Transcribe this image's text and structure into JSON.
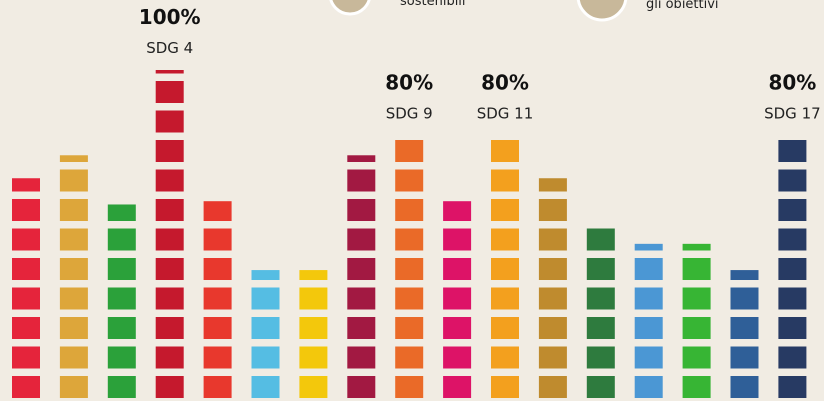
{
  "chart_data": {
    "type": "block-bar",
    "annotations": [
      "sostenibili",
      "gli obiettivi"
    ],
    "categories": [
      null,
      null,
      null,
      "SDG 4",
      null,
      null,
      null,
      null,
      "SDG 9",
      null,
      "SDG 11",
      null,
      null,
      null,
      null,
      null,
      "SDG 17"
    ],
    "values": [
      67,
      74,
      59,
      100,
      60,
      39,
      39,
      74,
      80,
      60,
      80,
      67,
      54,
      47,
      47,
      39,
      80
    ],
    "value_labels": [
      null,
      null,
      null,
      "100%",
      null,
      null,
      null,
      null,
      "80%",
      null,
      "80%",
      null,
      null,
      null,
      null,
      null,
      "80%"
    ],
    "colors": [
      "#e5243b",
      "#dda63a",
      "#2ba13a",
      "#c5192d",
      "#e8382d",
      "#55bde3",
      "#f3c80c",
      "#a21942",
      "#ea6a28",
      "#dd1367",
      "#f3a01e",
      "#bf8b2e",
      "#2e7b3e",
      "#4b97d4",
      "#37b534",
      "#2f5f98",
      "#273a63"
    ],
    "ylim": [
      0,
      100
    ]
  }
}
